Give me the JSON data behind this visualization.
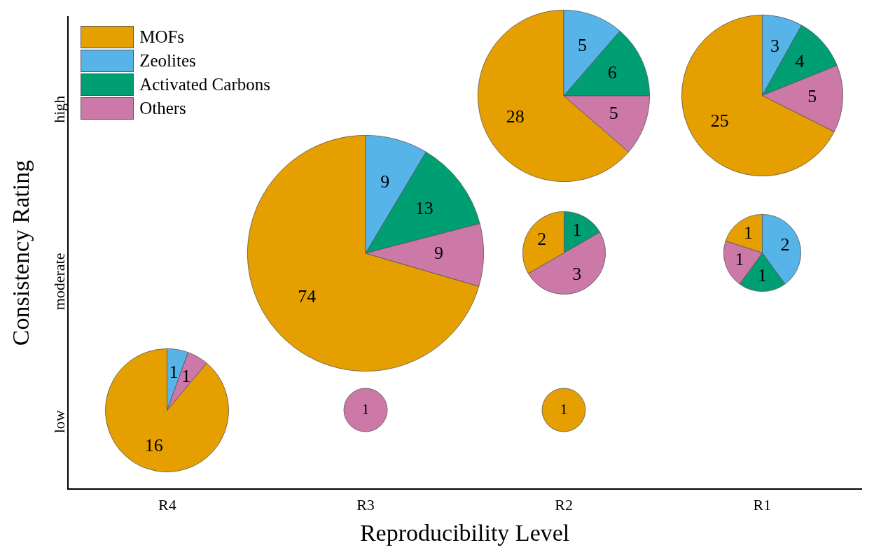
{
  "chart_data": [
    {
      "type": "other",
      "xlabel": "Reproducibility Level",
      "ylabel": "Consistency Rating",
      "categories": [
        "R4",
        "R3",
        "R2",
        "R1"
      ],
      "y_categories": [
        "high",
        "moderate",
        "low"
      ]
    },
    {
      "type": "pie",
      "categories": [
        "MOFs",
        "Zeolites",
        "Activated Carbons",
        "Others"
      ],
      "values": [
        28,
        5,
        6,
        5
      ],
      "colors": [
        "#e69f00",
        "#56b4e9",
        "#009e73",
        "#cc79a7"
      ],
      "data_labels": true,
      "legend": "top left"
    },
    {
      "type": "pie",
      "categories": [
        null,
        null,
        null,
        null
      ],
      "values": [
        25,
        3,
        4,
        5
      ],
      "colors": [
        "#e69f00",
        "#56b4e9",
        "#009e73",
        "#cc79a7"
      ],
      "data_labels": true
    },
    {
      "type": "pie",
      "categories": [
        null,
        null,
        null,
        null
      ],
      "values": [
        74,
        9,
        13,
        9
      ],
      "colors": [
        "#e69f00",
        "#56b4e9",
        "#009e73",
        "#cc79a7"
      ],
      "data_labels": true
    },
    {
      "type": "pie",
      "categories": [
        null,
        null,
        null
      ],
      "values": [
        2,
        1,
        3
      ],
      "colors": [
        "#e69f00",
        "#009e73",
        "#cc79a7"
      ],
      "data_labels": true
    },
    {
      "type": "pie",
      "categories": [
        null,
        null,
        null,
        null
      ],
      "values": [
        1,
        2,
        1,
        1
      ],
      "colors": [
        "#e69f00",
        "#56b4e9",
        "#009e73",
        "#cc79a7"
      ],
      "data_labels": true
    },
    {
      "type": "pie",
      "categories": [
        null,
        null,
        null
      ],
      "values": [
        16,
        1,
        1
      ],
      "colors": [
        "#e69f00",
        "#56b4e9",
        "#cc79a7"
      ],
      "data_labels": true
    },
    {
      "type": "pie",
      "categories": [
        null
      ],
      "values": [
        1
      ],
      "colors": [
        "#cc79a7"
      ],
      "data_labels": true
    },
    {
      "type": "pie",
      "categories": [
        null
      ],
      "values": [
        1
      ],
      "colors": [
        "#e69f00"
      ],
      "data_labels": true
    }
  ]
}
